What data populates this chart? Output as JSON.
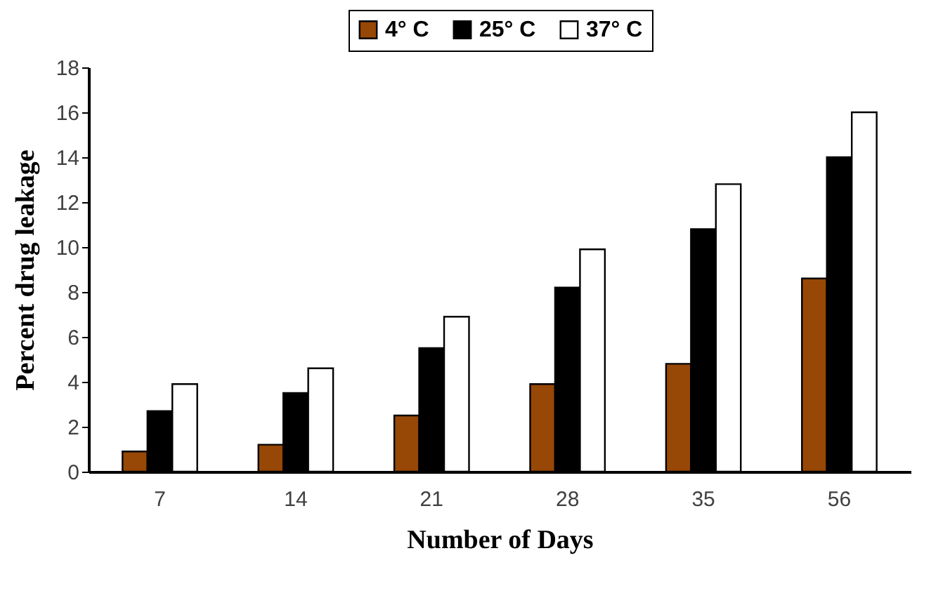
{
  "chart_data": {
    "type": "bar",
    "xlabel": "Number of Days",
    "ylabel": "Percent drug leakage",
    "categories": [
      "7",
      "14",
      "21",
      "28",
      "35",
      "56"
    ],
    "series": [
      {
        "name": "4° C",
        "color": "#974706",
        "values": [
          0.9,
          1.2,
          2.5,
          3.9,
          4.8,
          8.6
        ]
      },
      {
        "name": "25° C",
        "color": "#000000",
        "values": [
          2.7,
          3.5,
          5.5,
          8.2,
          10.8,
          14.0
        ]
      },
      {
        "name": "37° C",
        "color": "#ffffff",
        "values": [
          3.9,
          4.6,
          6.9,
          9.9,
          12.8,
          16.0
        ]
      }
    ],
    "ylim": [
      0,
      18
    ],
    "yticks": [
      0,
      2,
      4,
      6,
      8,
      10,
      12,
      14,
      16,
      18
    ],
    "grid": false,
    "legend": "top"
  }
}
